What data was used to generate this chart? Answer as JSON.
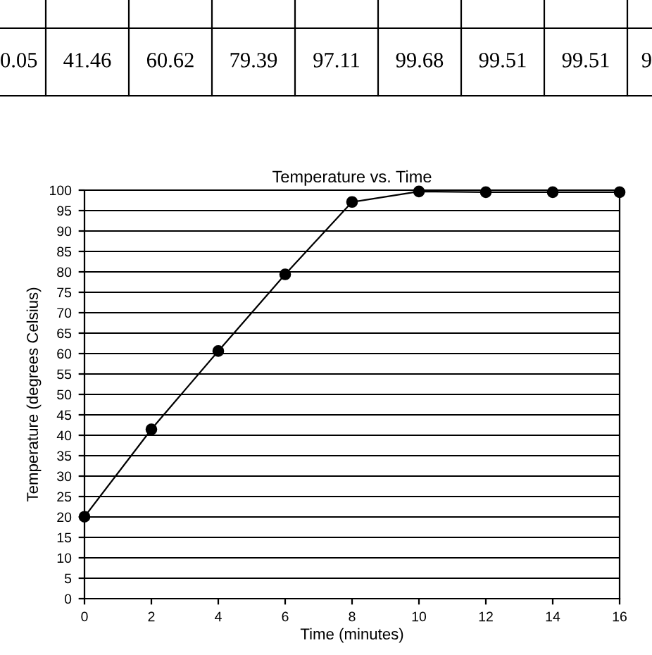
{
  "chart_data": {
    "type": "line",
    "title": "Temperature vs. Time",
    "xlabel": "Time (minutes)",
    "ylabel": "Temperature (degrees Celsius)",
    "x": [
      0,
      2,
      4,
      6,
      8,
      10,
      12,
      14,
      16
    ],
    "series": [
      {
        "color": "#000000",
        "values": [
          20.05,
          41.46,
          60.62,
          79.39,
          97.11,
          99.68,
          99.51,
          99.51,
          99.5
        ]
      }
    ],
    "value_labels": [
      "0.05",
      "41.46",
      "60.62",
      "79.39",
      "97.11",
      "99.68",
      "99.51",
      "99.51",
      "9"
    ],
    "xlim": [
      0,
      16
    ],
    "xticks": [
      0,
      2,
      4,
      6,
      8,
      10,
      12,
      14,
      16
    ],
    "ylim": [
      0,
      100
    ],
    "yticks": [
      0,
      5,
      10,
      15,
      20,
      25,
      30,
      35,
      40,
      45,
      50,
      55,
      60,
      65,
      70,
      75,
      80,
      85,
      90,
      95,
      100
    ],
    "grid": "y",
    "marker": "circle",
    "line_style": "solid",
    "legend": false
  }
}
